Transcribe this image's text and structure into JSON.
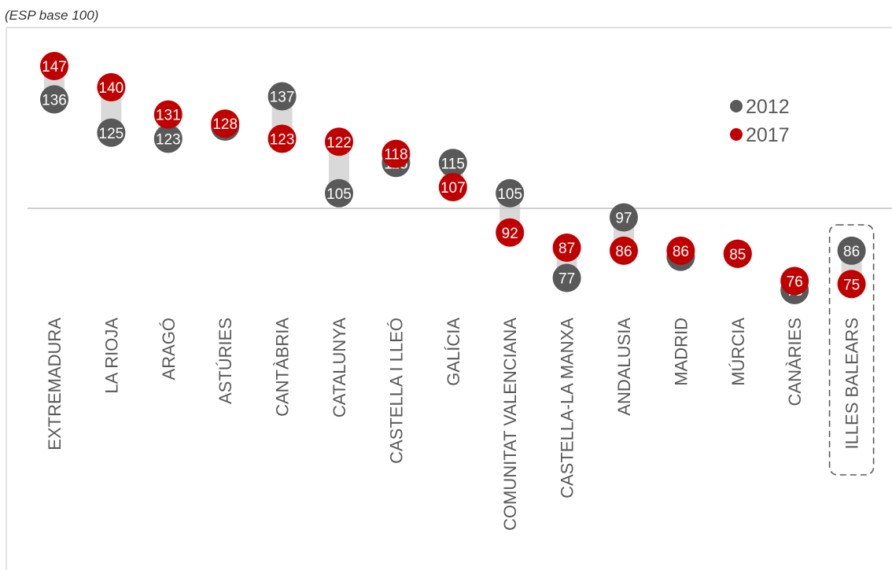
{
  "chart_data": {
    "type": "dumbbell",
    "title": "",
    "subtitle": "(ESP base 100)",
    "xlabel": "",
    "ylabel": "",
    "reference_value": 100,
    "categories": [
      "EXTREMADURA",
      "LA RIOJA",
      "ARAGÓ",
      "ASTÚRIES",
      "CANTÀBRIA",
      "CATALUNYA",
      "CASTELLA I LLEÓ",
      "GALÍCIA",
      "COMUNITAT VALENCIANA",
      "CASTELLA-LA MANXA",
      "ANDALUSIA",
      "MADRID",
      "MÚRCIA",
      "CANÀRIES",
      "ILLES BALEARS"
    ],
    "series": [
      {
        "name": "2012",
        "color": "#595959",
        "values": [
          136,
          125,
          123,
          127,
          137,
          105,
          115,
          115,
          105,
          77,
          97,
          84,
          85,
          73,
          86
        ]
      },
      {
        "name": "2017",
        "color": "#c00000",
        "values": [
          147,
          140,
          131,
          128,
          123,
          122,
          118,
          107,
          92,
          87,
          86,
          86,
          85,
          76,
          75
        ]
      }
    ],
    "legend_position": "top-right",
    "highlighted_category": "ILLES BALEARS",
    "grid": false
  }
}
